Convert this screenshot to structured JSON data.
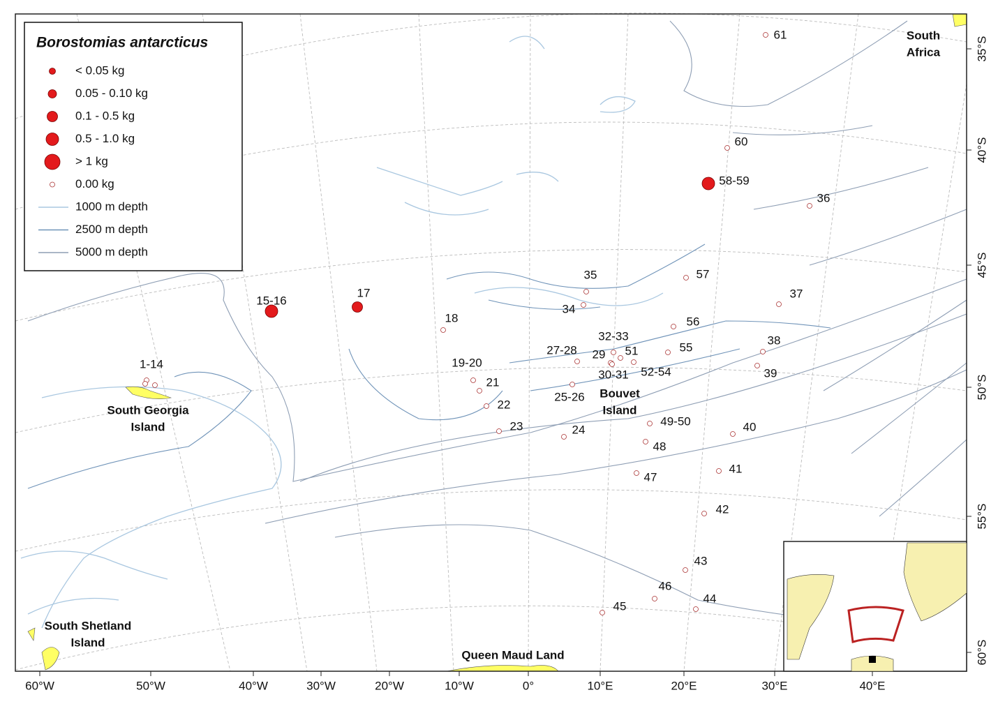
{
  "title": "Borostomias antarcticus",
  "legend": [
    "< 0.05 kg",
    "0.05 - 0.10 kg",
    "0.1 - 0.5 kg",
    "0.5 - 1.0 kg",
    "> 1 kg",
    "0.00 kg",
    "1000 m depth",
    "2500 m depth",
    "5000 m depth"
  ],
  "stations": [
    "61",
    "60",
    "58-59",
    "36",
    "57",
    "37",
    "35",
    "34",
    "17",
    "15-16",
    "18",
    "56",
    "38",
    "39",
    "32-33",
    "51",
    "29",
    "27-28",
    "55",
    "30-31",
    "52-54",
    "19-20",
    "21",
    "25-26",
    "22",
    "1-14",
    "49-50",
    "40",
    "23",
    "24",
    "48",
    "41",
    "47",
    "42",
    "43",
    "46",
    "44",
    "45"
  ],
  "regions": [
    [
      "South",
      "Africa"
    ],
    [
      "South Georgia",
      "Island"
    ],
    [
      "South Shetland",
      "Island"
    ],
    [
      "Queen Maud Land"
    ],
    [
      "Bouvet",
      "Island"
    ]
  ],
  "lon_labels": [
    "60°W",
    "50°W",
    "40°W",
    "30°W",
    "20°W",
    "10°W",
    "0°",
    "10°E",
    "20°E",
    "30°E",
    "40°E"
  ],
  "lat_labels": [
    "35°S",
    "40°S",
    "45°S",
    "50°S",
    "55°S",
    "60°S"
  ]
}
